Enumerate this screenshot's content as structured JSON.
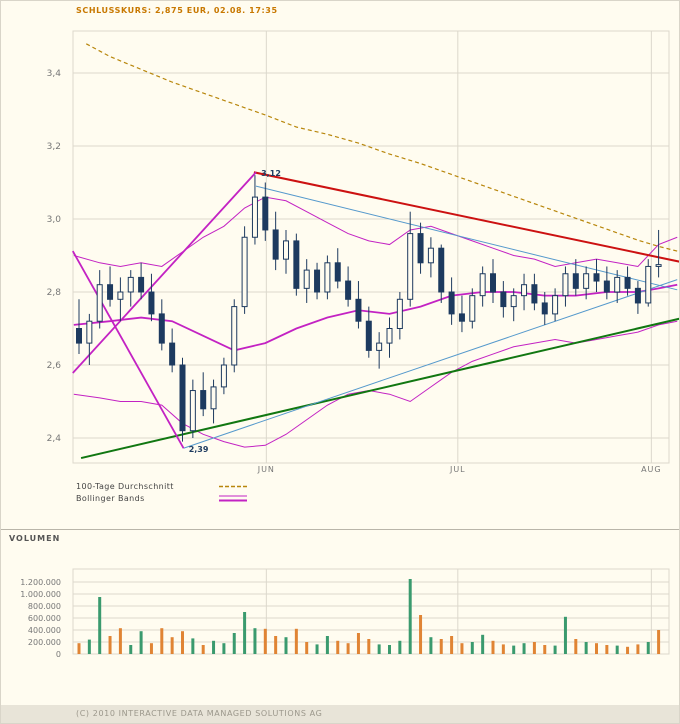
{
  "header": {
    "schlusskurs": "SCHLUSSKURS: 2,875 EUR, 02.08. 17:35"
  },
  "legend": {
    "ma_label": "100-Tage Durchschnitt",
    "bollinger_label": "Bollinger Bands"
  },
  "volume_section": {
    "title": "VOLUMEN"
  },
  "footer": {
    "copyright": "(C) 2010 INTERACTIVE DATA MANAGED SOLUTIONS AG"
  },
  "colors": {
    "header_text": "#c87800",
    "candle": "#1d3a5f",
    "candle_up_fill": "#fffcf0",
    "bollinger": "#c322c3",
    "ma100": "#b8860b",
    "vol_up": "#3a9a6e",
    "vol_down": "#e08434",
    "grid": "#dcd8cc",
    "axis_text": "#777777"
  },
  "chart_data": {
    "type": "candlestick",
    "title": "SCHLUSSKURS: 2,875 EUR, 02.08. 17:35",
    "subtitle_volume": "VOLUMEN",
    "price_axis": {
      "ticks": [
        {
          "label": "3,4",
          "value": 3.4
        },
        {
          "label": "3,2",
          "value": 3.2
        },
        {
          "label": "3,0",
          "value": 3.0
        },
        {
          "label": "2,8",
          "value": 2.8
        },
        {
          "label": "2,6",
          "value": 2.6
        },
        {
          "label": "2,4",
          "value": 2.4
        }
      ],
      "range": [
        2.33,
        3.52
      ],
      "currency": "EUR"
    },
    "x_axis": {
      "months": [
        {
          "label": "JUN",
          "day": 18.1
        },
        {
          "label": "JUL",
          "day": 36.6
        },
        {
          "label": "AUG",
          "day": 55.3
        }
      ]
    },
    "annotations": [
      {
        "text": "3,12",
        "day": 17.6,
        "value": 3.118
      },
      {
        "text": "2,39",
        "day": 10.6,
        "value": 2.362
      }
    ],
    "candles": [
      [
        2.7,
        2.78,
        2.63,
        2.66
      ],
      [
        2.66,
        2.74,
        2.6,
        2.72
      ],
      [
        2.72,
        2.86,
        2.7,
        2.82
      ],
      [
        2.82,
        2.87,
        2.76,
        2.78
      ],
      [
        2.78,
        2.84,
        2.72,
        2.8
      ],
      [
        2.8,
        2.86,
        2.76,
        2.84
      ],
      [
        2.84,
        2.88,
        2.78,
        2.8
      ],
      [
        2.8,
        2.85,
        2.72,
        2.74
      ],
      [
        2.74,
        2.78,
        2.64,
        2.66
      ],
      [
        2.66,
        2.7,
        2.58,
        2.6
      ],
      [
        2.6,
        2.62,
        2.39,
        2.42
      ],
      [
        2.42,
        2.56,
        2.4,
        2.53
      ],
      [
        2.53,
        2.58,
        2.46,
        2.48
      ],
      [
        2.48,
        2.56,
        2.44,
        2.54
      ],
      [
        2.54,
        2.62,
        2.52,
        2.6
      ],
      [
        2.6,
        2.78,
        2.58,
        2.76
      ],
      [
        2.76,
        2.98,
        2.74,
        2.95
      ],
      [
        2.95,
        3.12,
        2.93,
        3.06
      ],
      [
        3.06,
        3.1,
        2.94,
        2.97
      ],
      [
        2.97,
        3.02,
        2.86,
        2.89
      ],
      [
        2.89,
        2.97,
        2.85,
        2.94
      ],
      [
        2.94,
        2.96,
        2.79,
        2.81
      ],
      [
        2.81,
        2.89,
        2.77,
        2.86
      ],
      [
        2.86,
        2.88,
        2.78,
        2.8
      ],
      [
        2.8,
        2.9,
        2.78,
        2.88
      ],
      [
        2.88,
        2.92,
        2.81,
        2.83
      ],
      [
        2.83,
        2.87,
        2.76,
        2.78
      ],
      [
        2.78,
        2.83,
        2.7,
        2.72
      ],
      [
        2.72,
        2.76,
        2.62,
        2.64
      ],
      [
        2.64,
        2.69,
        2.59,
        2.66
      ],
      [
        2.66,
        2.73,
        2.62,
        2.7
      ],
      [
        2.7,
        2.8,
        2.67,
        2.78
      ],
      [
        2.78,
        3.02,
        2.76,
        2.96
      ],
      [
        2.96,
        2.99,
        2.85,
        2.88
      ],
      [
        2.88,
        2.95,
        2.84,
        2.92
      ],
      [
        2.92,
        2.93,
        2.77,
        2.8
      ],
      [
        2.8,
        2.84,
        2.71,
        2.74
      ],
      [
        2.74,
        2.79,
        2.69,
        2.72
      ],
      [
        2.72,
        2.81,
        2.7,
        2.79
      ],
      [
        2.79,
        2.87,
        2.76,
        2.85
      ],
      [
        2.85,
        2.89,
        2.77,
        2.8
      ],
      [
        2.8,
        2.83,
        2.73,
        2.76
      ],
      [
        2.76,
        2.81,
        2.72,
        2.79
      ],
      [
        2.79,
        2.85,
        2.75,
        2.82
      ],
      [
        2.82,
        2.85,
        2.75,
        2.77
      ],
      [
        2.77,
        2.8,
        2.71,
        2.74
      ],
      [
        2.74,
        2.81,
        2.72,
        2.79
      ],
      [
        2.79,
        2.87,
        2.76,
        2.85
      ],
      [
        2.85,
        2.89,
        2.79,
        2.81
      ],
      [
        2.81,
        2.87,
        2.78,
        2.85
      ],
      [
        2.85,
        2.89,
        2.8,
        2.83
      ],
      [
        2.83,
        2.87,
        2.78,
        2.8
      ],
      [
        2.8,
        2.86,
        2.77,
        2.84
      ],
      [
        2.84,
        2.87,
        2.79,
        2.81
      ],
      [
        2.81,
        2.83,
        2.74,
        2.77
      ],
      [
        2.77,
        2.89,
        2.76,
        2.87
      ],
      [
        2.87,
        2.97,
        2.84,
        2.875
      ]
    ],
    "volume": {
      "ticks": [
        {
          "label": "1.200.000",
          "value": 1200000
        },
        {
          "label": "1.000.000",
          "value": 1000000
        },
        {
          "label": "800.000",
          "value": 800000
        },
        {
          "label": "600.000",
          "value": 600000
        },
        {
          "label": "400.000",
          "value": 400000
        },
        {
          "label": "200.000",
          "value": 200000
        },
        {
          "label": "0",
          "value": 0
        }
      ],
      "bars": [
        [
          180000,
          "d"
        ],
        [
          240000,
          "u"
        ],
        [
          950000,
          "u"
        ],
        [
          300000,
          "d"
        ],
        [
          430000,
          "d"
        ],
        [
          150000,
          "u"
        ],
        [
          380000,
          "u"
        ],
        [
          180000,
          "d"
        ],
        [
          430000,
          "d"
        ],
        [
          280000,
          "d"
        ],
        [
          380000,
          "d"
        ],
        [
          260000,
          "u"
        ],
        [
          150000,
          "d"
        ],
        [
          220000,
          "u"
        ],
        [
          180000,
          "u"
        ],
        [
          350000,
          "u"
        ],
        [
          700000,
          "u"
        ],
        [
          430000,
          "u"
        ],
        [
          420000,
          "d"
        ],
        [
          300000,
          "d"
        ],
        [
          280000,
          "u"
        ],
        [
          420000,
          "d"
        ],
        [
          200000,
          "d"
        ],
        [
          160000,
          "u"
        ],
        [
          300000,
          "u"
        ],
        [
          220000,
          "d"
        ],
        [
          180000,
          "d"
        ],
        [
          350000,
          "d"
        ],
        [
          250000,
          "d"
        ],
        [
          160000,
          "u"
        ],
        [
          150000,
          "u"
        ],
        [
          220000,
          "u"
        ],
        [
          1250000,
          "u"
        ],
        [
          650000,
          "d"
        ],
        [
          280000,
          "u"
        ],
        [
          250000,
          "d"
        ],
        [
          300000,
          "d"
        ],
        [
          180000,
          "d"
        ],
        [
          200000,
          "u"
        ],
        [
          320000,
          "u"
        ],
        [
          220000,
          "d"
        ],
        [
          160000,
          "d"
        ],
        [
          140000,
          "u"
        ],
        [
          180000,
          "u"
        ],
        [
          200000,
          "d"
        ],
        [
          150000,
          "d"
        ],
        [
          140000,
          "u"
        ],
        [
          620000,
          "u"
        ],
        [
          250000,
          "d"
        ],
        [
          200000,
          "u"
        ],
        [
          180000,
          "d"
        ],
        [
          150000,
          "d"
        ],
        [
          140000,
          "u"
        ],
        [
          120000,
          "d"
        ],
        [
          160000,
          "d"
        ],
        [
          200000,
          "u"
        ],
        [
          400000,
          "d"
        ]
      ]
    },
    "overlays": {
      "ma100": {
        "label": "100-Tage Durchschnitt",
        "points": [
          [
            0.7,
            3.48
          ],
          [
            3,
            3.445
          ],
          [
            6,
            3.41
          ],
          [
            9,
            3.375
          ],
          [
            12,
            3.345
          ],
          [
            15,
            3.315
          ],
          [
            18,
            3.285
          ],
          [
            21,
            3.252
          ],
          [
            24,
            3.232
          ],
          [
            27,
            3.208
          ],
          [
            30,
            3.178
          ],
          [
            33,
            3.152
          ],
          [
            36,
            3.122
          ],
          [
            39,
            3.092
          ],
          [
            42,
            3.062
          ],
          [
            45,
            3.032
          ],
          [
            48,
            3.002
          ],
          [
            50,
            2.982
          ],
          [
            52,
            2.962
          ],
          [
            54,
            2.942
          ],
          [
            56,
            2.925
          ],
          [
            57.8,
            2.912
          ]
        ]
      },
      "bollinger": {
        "label": "Bollinger Bands",
        "upper": [
          [
            -0.5,
            2.9
          ],
          [
            2,
            2.88
          ],
          [
            4,
            2.87
          ],
          [
            6,
            2.88
          ],
          [
            8,
            2.87
          ],
          [
            10,
            2.91
          ],
          [
            12,
            2.95
          ],
          [
            14,
            2.98
          ],
          [
            16,
            3.03
          ],
          [
            18,
            3.06
          ],
          [
            20,
            3.05
          ],
          [
            22,
            3.02
          ],
          [
            24,
            2.99
          ],
          [
            26,
            2.96
          ],
          [
            28,
            2.94
          ],
          [
            30,
            2.93
          ],
          [
            32,
            2.97
          ],
          [
            34,
            2.98
          ],
          [
            36,
            2.96
          ],
          [
            38,
            2.94
          ],
          [
            40,
            2.92
          ],
          [
            42,
            2.9
          ],
          [
            44,
            2.89
          ],
          [
            46,
            2.87
          ],
          [
            48,
            2.88
          ],
          [
            50,
            2.89
          ],
          [
            52,
            2.88
          ],
          [
            54,
            2.87
          ],
          [
            56,
            2.93
          ],
          [
            57.8,
            2.95
          ]
        ],
        "middle": [
          [
            -0.5,
            2.71
          ],
          [
            3,
            2.72
          ],
          [
            6,
            2.73
          ],
          [
            9,
            2.72
          ],
          [
            12,
            2.68
          ],
          [
            15,
            2.64
          ],
          [
            18,
            2.66
          ],
          [
            21,
            2.7
          ],
          [
            24,
            2.73
          ],
          [
            27,
            2.75
          ],
          [
            30,
            2.74
          ],
          [
            33,
            2.76
          ],
          [
            36,
            2.79
          ],
          [
            39,
            2.8
          ],
          [
            42,
            2.8
          ],
          [
            45,
            2.79
          ],
          [
            48,
            2.79
          ],
          [
            51,
            2.8
          ],
          [
            54,
            2.8
          ],
          [
            56,
            2.81
          ],
          [
            57.8,
            2.82
          ]
        ],
        "lower": [
          [
            -0.5,
            2.52
          ],
          [
            2,
            2.51
          ],
          [
            4,
            2.5
          ],
          [
            6,
            2.5
          ],
          [
            8,
            2.49
          ],
          [
            10,
            2.44
          ],
          [
            12,
            2.41
          ],
          [
            14,
            2.39
          ],
          [
            16,
            2.375
          ],
          [
            18,
            2.38
          ],
          [
            20,
            2.41
          ],
          [
            22,
            2.45
          ],
          [
            24,
            2.49
          ],
          [
            26,
            2.52
          ],
          [
            28,
            2.53
          ],
          [
            30,
            2.52
          ],
          [
            32,
            2.5
          ],
          [
            34,
            2.54
          ],
          [
            36,
            2.58
          ],
          [
            38,
            2.61
          ],
          [
            40,
            2.63
          ],
          [
            42,
            2.65
          ],
          [
            44,
            2.66
          ],
          [
            46,
            2.67
          ],
          [
            48,
            2.66
          ],
          [
            50,
            2.67
          ],
          [
            52,
            2.68
          ],
          [
            54,
            2.69
          ],
          [
            56,
            2.71
          ],
          [
            57.8,
            2.72
          ]
        ]
      },
      "trendlines": [
        {
          "name": "resistance-red",
          "color": "#cc1111",
          "width": 2,
          "from": [
            16.9,
            3.128
          ],
          "to": [
            58.2,
            2.882
          ]
        },
        {
          "name": "support-green",
          "color": "#117711",
          "width": 2,
          "from": [
            0.2,
            2.345
          ],
          "to": [
            58.2,
            2.728
          ]
        },
        {
          "name": "triangle-upper-blue",
          "color": "#5599cc",
          "width": 1,
          "from": [
            17.1,
            3.09
          ],
          "to": [
            57.8,
            2.806
          ]
        },
        {
          "name": "triangle-lower-blue",
          "color": "#5599cc",
          "width": 1,
          "from": [
            10.1,
            2.372
          ],
          "to": [
            57.8,
            2.834
          ]
        },
        {
          "name": "magenta-falling",
          "color": "#c322c3",
          "width": 1.8,
          "from": [
            -0.6,
            2.912
          ],
          "to": [
            10.1,
            2.372
          ]
        },
        {
          "name": "magenta-rising",
          "color": "#c322c3",
          "width": 1.8,
          "from": [
            -0.6,
            2.578
          ],
          "to": [
            17.1,
            3.128
          ]
        }
      ]
    }
  }
}
